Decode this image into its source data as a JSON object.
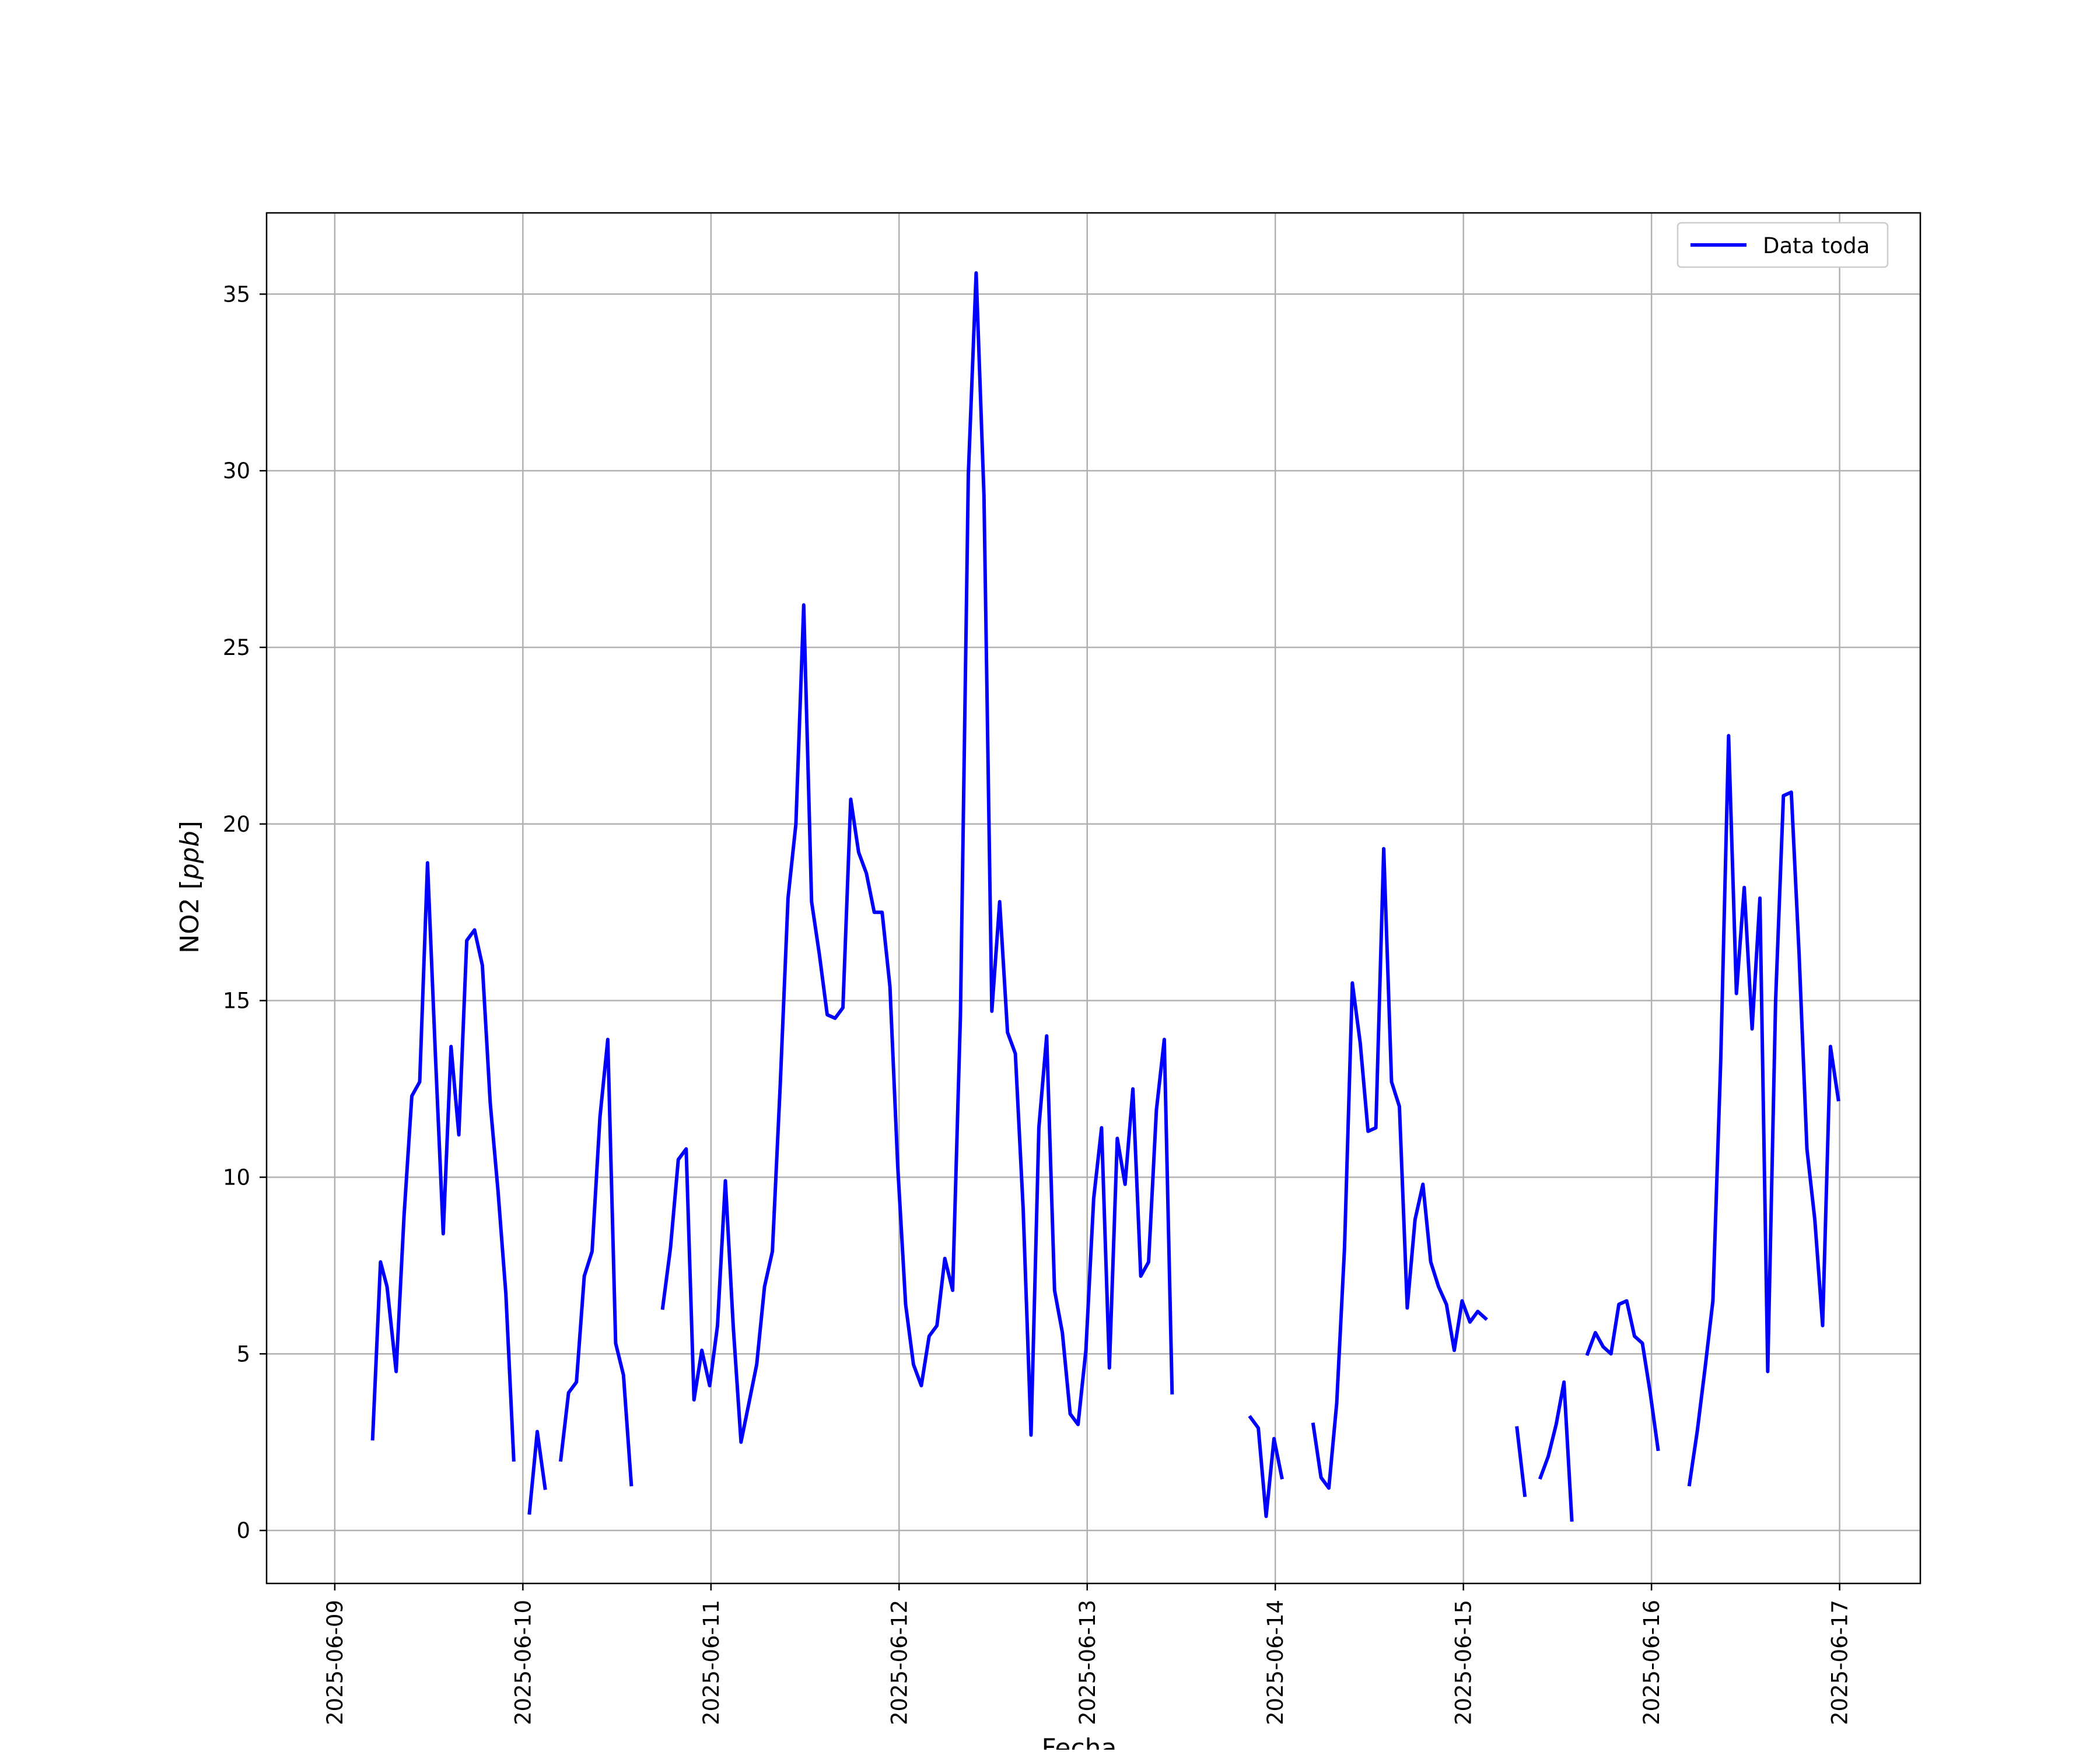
{
  "chart_data": {
    "type": "line",
    "xlabel": "Fecha",
    "ylabel": "NO2 [ppb]",
    "ylabel_main": "NO2 [",
    "ylabel_unit": "ppb",
    "ylabel_close": "]",
    "x_ticks": [
      "2025-06-09",
      "2025-06-10",
      "2025-06-11",
      "2025-06-12",
      "2025-06-13",
      "2025-06-14",
      "2025-06-15",
      "2025-06-16",
      "2025-06-17"
    ],
    "y_ticks": [
      0,
      5,
      10,
      15,
      20,
      25,
      30,
      35
    ],
    "xlim": [
      "2025-06-08T15:18",
      "2025-06-17T10:18"
    ],
    "ylim": [
      -1.5,
      37.3
    ],
    "grid": true,
    "legend_position": "top-right",
    "series": [
      {
        "name": "Data toda",
        "color": "#0000ff",
        "segments": [
          [
            [
              "2025-06-09T04:50",
              2.6
            ],
            [
              "2025-06-09T05:50",
              7.6
            ],
            [
              "2025-06-09T06:40",
              6.9
            ],
            [
              "2025-06-09T07:50",
              4.5
            ],
            [
              "2025-06-09T08:50",
              8.9
            ],
            [
              "2025-06-09T09:50",
              12.3
            ],
            [
              "2025-06-09T10:50",
              12.7
            ],
            [
              "2025-06-09T11:50",
              18.9
            ],
            [
              "2025-06-09T12:50",
              13.5
            ],
            [
              "2025-06-09T13:50",
              8.4
            ],
            [
              "2025-06-09T14:50",
              13.7
            ],
            [
              "2025-06-09T15:50",
              11.2
            ],
            [
              "2025-06-09T16:50",
              16.7
            ],
            [
              "2025-06-09T17:50",
              17.0
            ],
            [
              "2025-06-09T18:50",
              16.0
            ],
            [
              "2025-06-09T19:50",
              12.1
            ],
            [
              "2025-06-09T20:50",
              9.6
            ],
            [
              "2025-06-09T21:50",
              6.7
            ],
            [
              "2025-06-09T22:50",
              2.0
            ]
          ],
          [
            [
              "2025-06-10T00:50",
              0.5
            ],
            [
              "2025-06-10T01:50",
              2.8
            ],
            [
              "2025-06-10T02:50",
              1.2
            ]
          ],
          [
            [
              "2025-06-10T04:50",
              2.0
            ],
            [
              "2025-06-10T05:50",
              3.9
            ],
            [
              "2025-06-10T06:50",
              4.2
            ],
            [
              "2025-06-10T07:50",
              7.2
            ],
            [
              "2025-06-10T08:50",
              7.9
            ],
            [
              "2025-06-10T09:50",
              11.7
            ],
            [
              "2025-06-10T10:50",
              13.9
            ],
            [
              "2025-06-10T11:50",
              5.3
            ],
            [
              "2025-06-10T12:50",
              4.4
            ],
            [
              "2025-06-10T13:50",
              1.3
            ]
          ],
          [
            [
              "2025-06-10T17:50",
              6.3
            ],
            [
              "2025-06-10T18:50",
              8.0
            ],
            [
              "2025-06-10T19:50",
              10.5
            ],
            [
              "2025-06-10T20:50",
              10.8
            ],
            [
              "2025-06-10T21:50",
              3.7
            ],
            [
              "2025-06-10T22:50",
              5.1
            ],
            [
              "2025-06-10T23:50",
              4.1
            ],
            [
              "2025-06-11T00:50",
              5.8
            ],
            [
              "2025-06-11T01:50",
              9.9
            ],
            [
              "2025-06-11T02:50",
              5.8
            ],
            [
              "2025-06-11T03:50",
              2.5
            ],
            [
              "2025-06-11T04:50",
              3.6
            ],
            [
              "2025-06-11T05:50",
              4.7
            ],
            [
              "2025-06-11T06:50",
              6.9
            ],
            [
              "2025-06-11T07:50",
              7.9
            ],
            [
              "2025-06-11T08:50",
              12.6
            ],
            [
              "2025-06-11T09:50",
              17.9
            ],
            [
              "2025-06-11T10:50",
              20.0
            ],
            [
              "2025-06-11T11:50",
              26.2
            ],
            [
              "2025-06-11T12:50",
              17.8
            ],
            [
              "2025-06-11T13:50",
              16.3
            ],
            [
              "2025-06-11T14:50",
              14.6
            ],
            [
              "2025-06-11T15:50",
              14.5
            ],
            [
              "2025-06-11T16:50",
              14.8
            ],
            [
              "2025-06-11T17:50",
              20.7
            ],
            [
              "2025-06-11T18:50",
              19.2
            ],
            [
              "2025-06-11T19:50",
              18.6
            ],
            [
              "2025-06-11T20:50",
              17.5
            ],
            [
              "2025-06-11T21:50",
              17.5
            ],
            [
              "2025-06-11T22:50",
              15.4
            ],
            [
              "2025-06-11T23:50",
              10.3
            ],
            [
              "2025-06-12T00:50",
              6.4
            ],
            [
              "2025-06-12T01:50",
              4.7
            ],
            [
              "2025-06-12T02:50",
              4.1
            ],
            [
              "2025-06-12T03:50",
              5.5
            ],
            [
              "2025-06-12T04:50",
              5.8
            ],
            [
              "2025-06-12T05:50",
              7.7
            ],
            [
              "2025-06-12T06:50",
              6.8
            ],
            [
              "2025-06-12T07:50",
              14.6
            ],
            [
              "2025-06-12T08:50",
              29.9
            ],
            [
              "2025-06-12T09:50",
              35.6
            ],
            [
              "2025-06-12T10:50",
              29.3
            ],
            [
              "2025-06-12T11:50",
              14.7
            ],
            [
              "2025-06-12T12:50",
              17.8
            ],
            [
              "2025-06-12T13:50",
              14.1
            ],
            [
              "2025-06-12T14:50",
              13.5
            ],
            [
              "2025-06-12T15:50",
              9.1
            ],
            [
              "2025-06-12T16:50",
              2.7
            ],
            [
              "2025-06-12T17:50",
              11.4
            ],
            [
              "2025-06-12T18:50",
              14.0
            ],
            [
              "2025-06-12T19:50",
              6.8
            ],
            [
              "2025-06-12T20:50",
              5.6
            ],
            [
              "2025-06-12T21:50",
              3.3
            ],
            [
              "2025-06-12T22:50",
              3.0
            ],
            [
              "2025-06-12T23:50",
              5.1
            ],
            [
              "2025-06-13T00:50",
              9.4
            ],
            [
              "2025-06-13T01:50",
              11.4
            ],
            [
              "2025-06-13T02:50",
              4.6
            ],
            [
              "2025-06-13T03:50",
              11.1
            ],
            [
              "2025-06-13T04:50",
              9.8
            ],
            [
              "2025-06-13T05:50",
              12.5
            ],
            [
              "2025-06-13T06:50",
              7.2
            ],
            [
              "2025-06-13T07:50",
              7.6
            ],
            [
              "2025-06-13T08:50",
              11.9
            ],
            [
              "2025-06-13T09:50",
              13.9
            ],
            [
              "2025-06-13T10:50",
              3.9
            ]
          ],
          [
            [
              "2025-06-13T20:50",
              3.2
            ],
            [
              "2025-06-13T21:50",
              2.9
            ],
            [
              "2025-06-13T22:50",
              0.4
            ],
            [
              "2025-06-13T23:50",
              2.6
            ],
            [
              "2025-06-14T00:50",
              1.5
            ]
          ],
          [
            [
              "2025-06-14T04:50",
              3.0
            ],
            [
              "2025-06-14T05:50",
              1.5
            ],
            [
              "2025-06-14T06:50",
              1.2
            ],
            [
              "2025-06-14T07:50",
              3.6
            ],
            [
              "2025-06-14T08:50",
              8.0
            ],
            [
              "2025-06-14T09:50",
              15.5
            ],
            [
              "2025-06-14T10:50",
              13.8
            ],
            [
              "2025-06-14T11:50",
              11.3
            ],
            [
              "2025-06-14T12:50",
              11.4
            ],
            [
              "2025-06-14T13:50",
              19.3
            ],
            [
              "2025-06-14T14:50",
              12.7
            ],
            [
              "2025-06-14T15:50",
              12.0
            ],
            [
              "2025-06-14T16:50",
              6.3
            ],
            [
              "2025-06-14T17:50",
              8.8
            ],
            [
              "2025-06-14T18:50",
              9.8
            ],
            [
              "2025-06-14T19:50",
              7.6
            ],
            [
              "2025-06-14T20:50",
              6.9
            ],
            [
              "2025-06-14T21:50",
              6.4
            ],
            [
              "2025-06-14T22:50",
              5.1
            ],
            [
              "2025-06-14T23:50",
              6.5
            ],
            [
              "2025-06-15T00:50",
              5.9
            ],
            [
              "2025-06-15T01:50",
              6.2
            ],
            [
              "2025-06-15T02:50",
              6.0
            ]
          ],
          [
            [
              "2025-06-15T06:50",
              2.9
            ],
            [
              "2025-06-15T07:50",
              1.0
            ]
          ],
          [
            [
              "2025-06-15T09:50",
              1.5
            ],
            [
              "2025-06-15T10:50",
              2.1
            ],
            [
              "2025-06-15T11:50",
              3.0
            ],
            [
              "2025-06-15T12:50",
              4.2
            ],
            [
              "2025-06-15T13:50",
              0.3
            ]
          ],
          [
            [
              "2025-06-15T15:50",
              5.0
            ],
            [
              "2025-06-15T16:50",
              5.6
            ],
            [
              "2025-06-15T17:50",
              5.2
            ],
            [
              "2025-06-15T18:50",
              5.0
            ],
            [
              "2025-06-15T19:50",
              6.4
            ],
            [
              "2025-06-15T20:50",
              6.5
            ],
            [
              "2025-06-15T21:50",
              5.5
            ],
            [
              "2025-06-15T22:50",
              5.3
            ],
            [
              "2025-06-15T23:50",
              3.9
            ],
            [
              "2025-06-16T00:50",
              2.3
            ]
          ],
          [
            [
              "2025-06-16T04:50",
              1.3
            ],
            [
              "2025-06-16T05:50",
              2.8
            ],
            [
              "2025-06-16T06:50",
              4.6
            ],
            [
              "2025-06-16T07:50",
              6.5
            ],
            [
              "2025-06-16T08:50",
              13.3
            ],
            [
              "2025-06-16T09:50",
              22.5
            ],
            [
              "2025-06-16T10:50",
              15.2
            ],
            [
              "2025-06-16T11:50",
              18.2
            ],
            [
              "2025-06-16T12:50",
              14.2
            ],
            [
              "2025-06-16T13:50",
              17.9
            ],
            [
              "2025-06-16T14:50",
              4.5
            ],
            [
              "2025-06-16T15:50",
              15.0
            ],
            [
              "2025-06-16T16:50",
              20.8
            ],
            [
              "2025-06-16T17:50",
              20.9
            ],
            [
              "2025-06-16T18:50",
              16.3
            ],
            [
              "2025-06-16T19:50",
              10.8
            ],
            [
              "2025-06-16T20:50",
              8.8
            ],
            [
              "2025-06-16T21:50",
              5.8
            ],
            [
              "2025-06-16T22:50",
              13.7
            ],
            [
              "2025-06-16T23:50",
              12.2
            ]
          ]
        ]
      }
    ]
  }
}
